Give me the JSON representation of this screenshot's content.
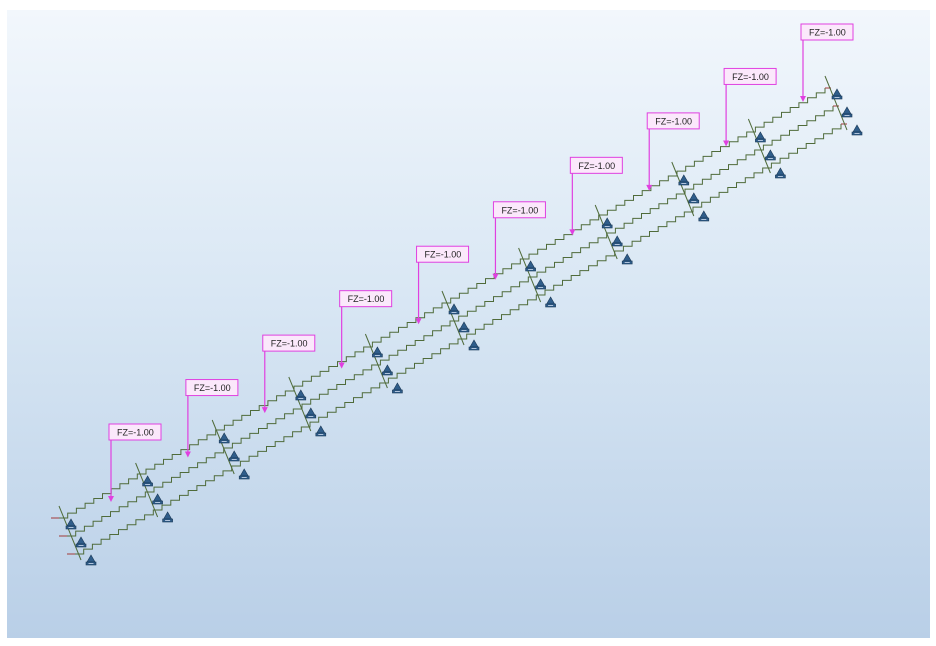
{
  "viewport": {
    "background_top": "#f2f7fc",
    "background_bottom": "#b9cfe7"
  },
  "model": {
    "member_color": "#4f6b3a",
    "member_end_color": "#a23a3a",
    "load_color": "#e040e0",
    "support_icon": "fixed-support-icon",
    "support_color": "#2f5d8a"
  },
  "loads": [
    {
      "label": "FZ=-1.00"
    },
    {
      "label": "FZ=-1.00"
    },
    {
      "label": "FZ=-1.00"
    },
    {
      "label": "FZ=-1.00"
    },
    {
      "label": "FZ=-1.00"
    },
    {
      "label": "FZ=-1.00"
    },
    {
      "label": "FZ=-1.00"
    },
    {
      "label": "FZ=-1.00"
    },
    {
      "label": "FZ=-1.00"
    },
    {
      "label": "FZ=-1.00"
    }
  ]
}
